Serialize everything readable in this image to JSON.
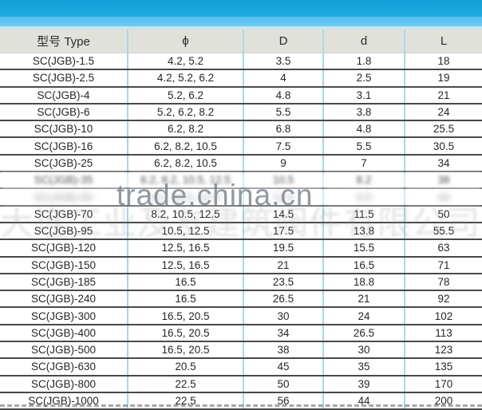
{
  "banner": {
    "color_top": "#1aa6dd",
    "color_mid": "#63c5f0",
    "color_low": "#c4e6f4"
  },
  "watermarks": {
    "site": "trade.china.cn",
    "company": "大连工业及友建筑阀件有限公司"
  },
  "table": {
    "headers": [
      "型号 Type",
      "ϕ",
      "D",
      "d",
      "L"
    ],
    "rows": [
      {
        "type": "SC(JGB)-1.5",
        "phi": "4.2, 5.2",
        "D": "3.5",
        "d": "1.8",
        "L": "18",
        "blur": ""
      },
      {
        "type": "SC(JGB)-2.5",
        "phi": "4.2, 5.2, 6.2",
        "D": "4",
        "d": "2.5",
        "L": "19",
        "blur": ""
      },
      {
        "type": "SC(JGB)-4",
        "phi": "5.2, 6.2",
        "D": "4.8",
        "d": "3.1",
        "L": "21",
        "blur": ""
      },
      {
        "type": "SC(JGB)-6",
        "phi": "5.2, 6.2, 8.2",
        "D": "5.5",
        "d": "3.8",
        "L": "24",
        "blur": ""
      },
      {
        "type": "SC(JGB)-10",
        "phi": "6.2, 8.2",
        "D": "6.8",
        "d": "4.8",
        "L": "25.5",
        "blur": ""
      },
      {
        "type": "SC(JGB)-16",
        "phi": "6.2, 8.2, 10.5",
        "D": "7.5",
        "d": "5.5",
        "L": "30.5",
        "blur": ""
      },
      {
        "type": "SC(JGB)-25",
        "phi": "6.2, 8.2, 10.5",
        "D": "9",
        "d": "7",
        "L": "34",
        "blur": ""
      },
      {
        "type": "SC(JGB)-35",
        "phi": "6.2, 8.2, 10.5, 12.5",
        "D": "10.5",
        "d": "8.2",
        "L": "38",
        "blur": "A"
      },
      {
        "type": "SC(JGB)-50",
        "phi": "8.2, 10.5, 12.5",
        "D": "12.5",
        "d": "9.5",
        "L": "44",
        "blur": "B"
      },
      {
        "type": "SC(JGB)-70",
        "phi": "8.2, 10.5, 12.5",
        "D": "14.5",
        "d": "11.5",
        "L": "50",
        "blur": ""
      },
      {
        "type": "SC(JGB)-95",
        "phi": "10.5, 12.5",
        "D": "17.5",
        "d": "13.8",
        "L": "55.5",
        "blur": ""
      },
      {
        "type": "SC(JGB)-120",
        "phi": "12.5, 16.5",
        "D": "19.5",
        "d": "15.5",
        "L": "63",
        "blur": ""
      },
      {
        "type": "SC(JGB)-150",
        "phi": "12.5, 16.5",
        "D": "21",
        "d": "16.5",
        "L": "71",
        "blur": ""
      },
      {
        "type": "SC(JGB)-185",
        "phi": "16.5",
        "D": "23.5",
        "d": "18.8",
        "L": "78",
        "blur": ""
      },
      {
        "type": "SC(JGB)-240",
        "phi": "16.5",
        "D": "26.5",
        "d": "21",
        "L": "92",
        "blur": ""
      },
      {
        "type": "SC(JGB)-300",
        "phi": "16.5, 20.5",
        "D": "30",
        "d": "24",
        "L": "102",
        "blur": ""
      },
      {
        "type": "SC(JGB)-400",
        "phi": "16.5, 20.5",
        "D": "34",
        "d": "26.5",
        "L": "113",
        "blur": ""
      },
      {
        "type": "SC(JGB)-500",
        "phi": "16.5, 20.5",
        "D": "38",
        "d": "30",
        "L": "123",
        "blur": ""
      },
      {
        "type": "SC(JGB)-630",
        "phi": "20.5",
        "D": "45",
        "d": "35",
        "L": "135",
        "blur": ""
      },
      {
        "type": "SC(JGB)-800",
        "phi": "22.5",
        "D": "50",
        "d": "39",
        "L": "170",
        "blur": ""
      },
      {
        "type": "SC(JGB)-1000",
        "phi": "22.5",
        "D": "56",
        "d": "44",
        "L": "200",
        "blur": ""
      }
    ]
  }
}
